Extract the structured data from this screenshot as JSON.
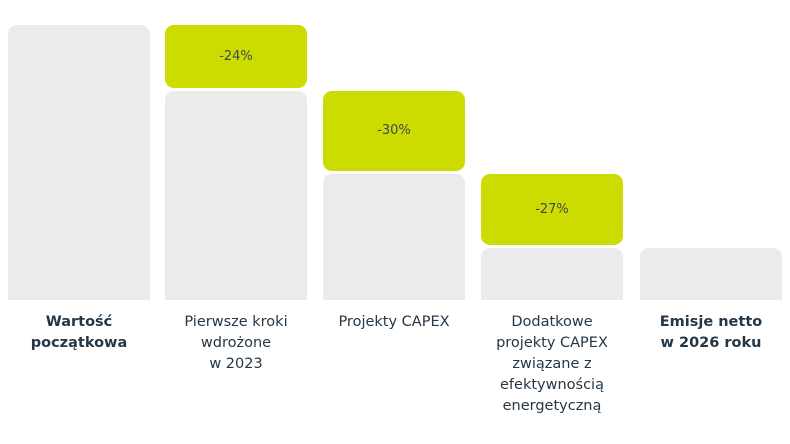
{
  "chart_data": {
    "type": "bar",
    "subtype": "waterfall",
    "title": "",
    "xlabel": "",
    "ylabel": "",
    "ylim": [
      0,
      100
    ],
    "categories": [
      "Wartość\npoczątkowa",
      "Pierwsze kroki\nwdrożone\nw 2023",
      "Projekty CAPEX",
      "Dodatkowe\nprojekty CAPEX\nzwiązane z\nefektywnością\nenergetyczną",
      "Emisje netto\nw 2026 roku"
    ],
    "bold_categories": [
      true,
      false,
      false,
      false,
      true
    ],
    "remaining": [
      100,
      76,
      46,
      19,
      19
    ],
    "reductions": [
      null,
      -24,
      -30,
      -27,
      null
    ],
    "reduction_labels": [
      null,
      "-24%",
      "-30%",
      "-27%",
      null
    ],
    "colors": {
      "base": "#ebebeb",
      "reduction": "#cddc00",
      "text": "#253746"
    }
  }
}
